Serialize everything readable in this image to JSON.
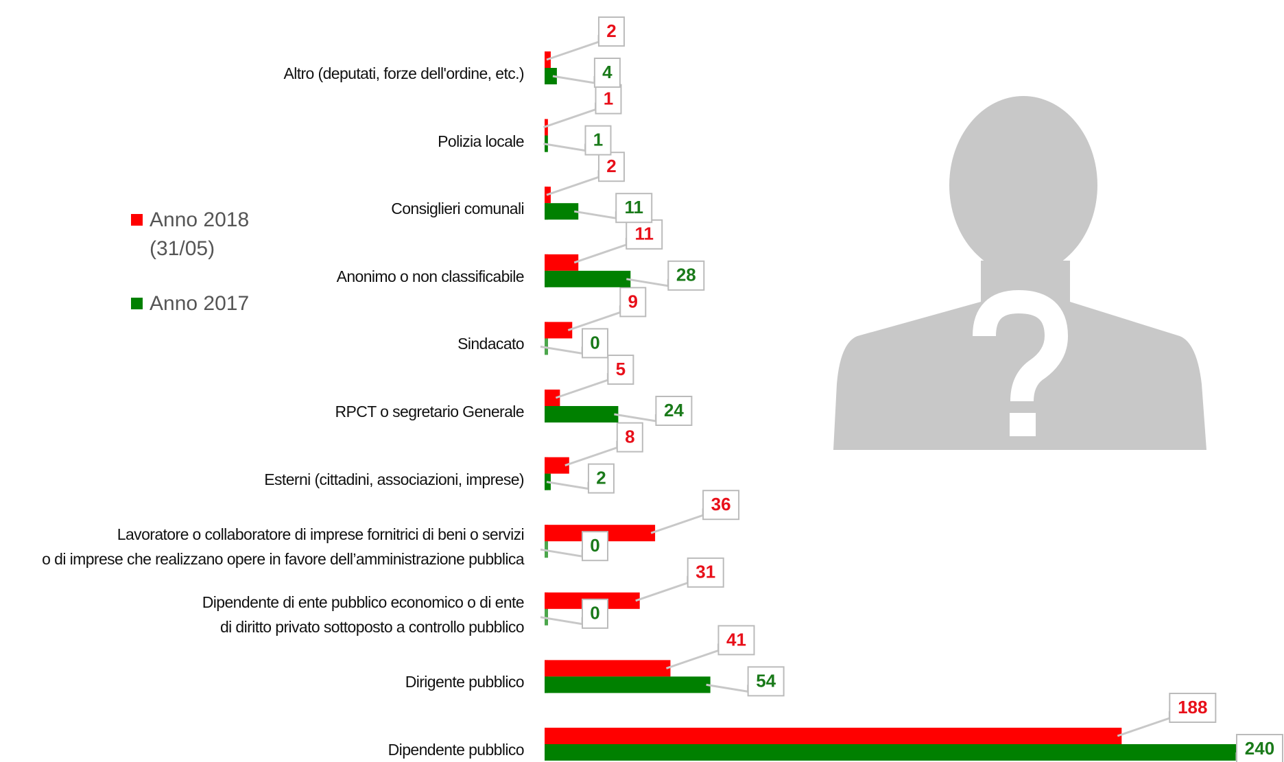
{
  "chart_data": {
    "type": "hbar",
    "categories": [
      "Altro (deputati, forze dell'ordine, etc.)",
      "Polizia locale",
      "Consiglieri comunali",
      "Anonimo o non classificabile",
      "Sindacato",
      "RPCT o segretario Generale",
      "Esterni (cittadini, associazioni, imprese)",
      "Lavoratore o collaboratore di imprese fornitrici di beni o servizi\no di imprese che realizzano opere in favore dell’amministrazione pubblica",
      "Dipendente di ente pubblico economico o di ente\ndi diritto privato sottoposto a controllo pubblico",
      "Dirigente pubblico",
      "Dipendente pubblico"
    ],
    "series": [
      {
        "name": "Anno 2018 (31/05)",
        "color": "#ff0000",
        "label_color": "#e8101a",
        "values": [
          2,
          1,
          2,
          11,
          9,
          5,
          8,
          36,
          31,
          41,
          188
        ]
      },
      {
        "name": "Anno 2017",
        "color": "#008000",
        "label_color": "#1a7a1a",
        "values": [
          4,
          1,
          11,
          28,
          0,
          24,
          2,
          0,
          0,
          54,
          240
        ]
      }
    ],
    "xlim": [
      0,
      240
    ],
    "legend": "left"
  }
}
